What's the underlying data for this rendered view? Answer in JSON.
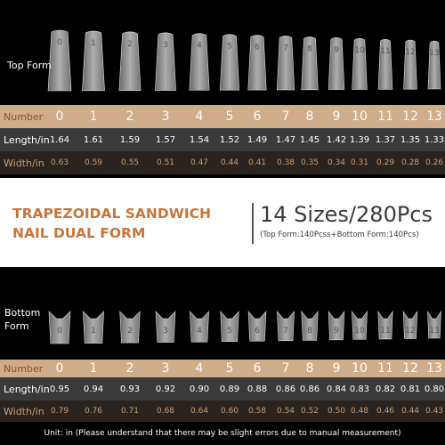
{
  "top_form": {
    "label": "Top Form",
    "table": {
      "rows": [
        [
          "Number",
          "0",
          "1",
          "2",
          "3",
          "4",
          "5",
          "6",
          "7",
          "8",
          "9",
          "10",
          "11",
          "12",
          "13"
        ],
        [
          "Length/in",
          "1.64",
          "1.61",
          "1.59",
          "1.57",
          "1.54",
          "1.52",
          "1.49",
          "1.47",
          "1.45",
          "1.42",
          "1.39",
          "1.37",
          "1.35",
          "1.33"
        ],
        [
          "Width/in",
          "0.63",
          "0.59",
          "0.55",
          "0.51",
          "0.47",
          "0.44",
          "0.41",
          "0.38",
          "0.35",
          "0.34",
          "0.31",
          "0.29",
          "0.28",
          "0.26"
        ]
      ]
    }
  },
  "banner": {
    "title_line1": "TRAPEZOIDAL SANDWICH",
    "title_line2": "NAIL DUAL FORM",
    "sizes": "14 Sizes/280Pcs",
    "detail": "(Top Form:140Pcss+Bottom Form:140Pcs)"
  },
  "bottom_form": {
    "label": "Bottom Form",
    "table": {
      "rows": [
        [
          "Number",
          "0",
          "1",
          "2",
          "3",
          "4",
          "5",
          "6",
          "7",
          "8",
          "9",
          "10",
          "11",
          "12",
          "13"
        ],
        [
          "Length/in",
          "0.95",
          "0.94",
          "0.93",
          "0.92",
          "0.90",
          "0.89",
          "0.88",
          "0.86",
          "0.86",
          "0.84",
          "0.83",
          "0.82",
          "0.81",
          "0.80"
        ],
        [
          "Width/in",
          "0.79",
          "0.76",
          "0.71",
          "0.68",
          "0.64",
          "0.60",
          "0.58",
          "0.54",
          "0.52",
          "0.50",
          "0.48",
          "0.46",
          "0.44",
          "0.43"
        ]
      ]
    }
  },
  "footer": "Unit: in (Please understand that there may be slight errors due to manual measurement)"
}
